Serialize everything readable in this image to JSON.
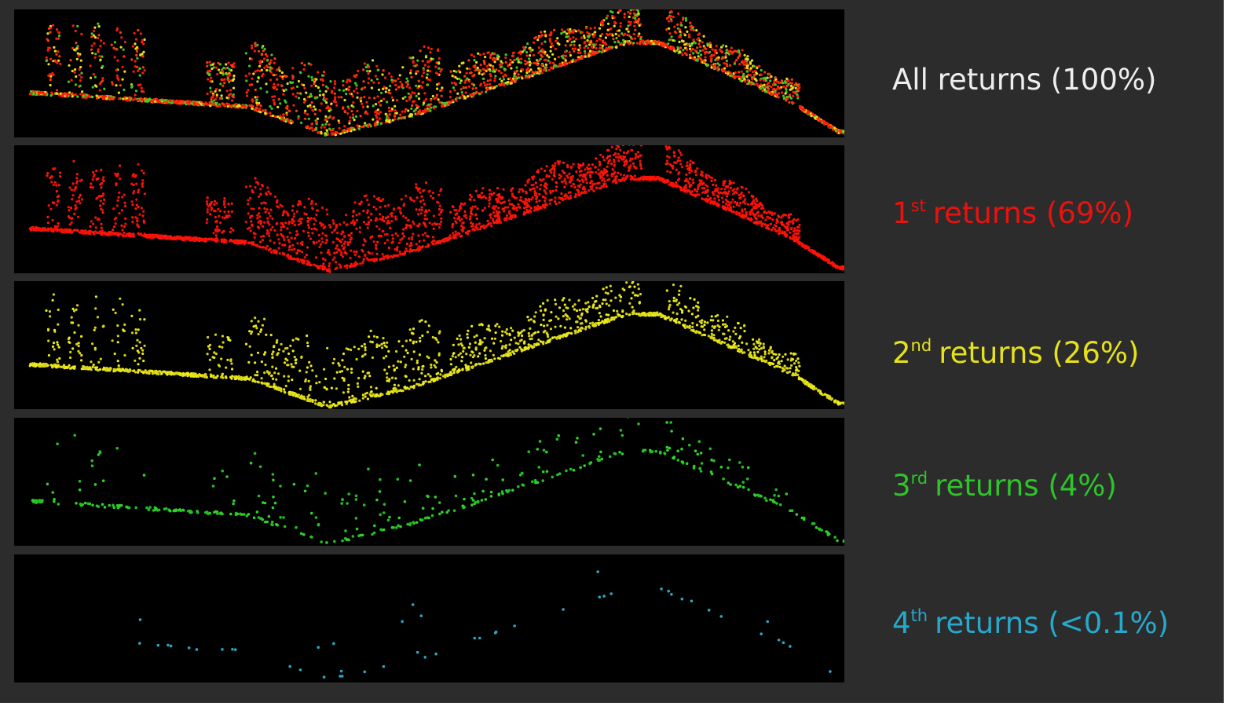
{
  "panels": [
    {
      "label": "All returns (100%)"
    },
    {
      "ordinal": "1",
      "suffix": "st",
      "label": "returns (69%)"
    },
    {
      "ordinal": "2",
      "suffix": "nd",
      "label": "returns (26%)"
    },
    {
      "ordinal": "3",
      "suffix": "rd",
      "label": "returns (4%)"
    },
    {
      "ordinal": "4",
      "suffix": "th",
      "label": "returns (<0.1%)"
    }
  ]
}
